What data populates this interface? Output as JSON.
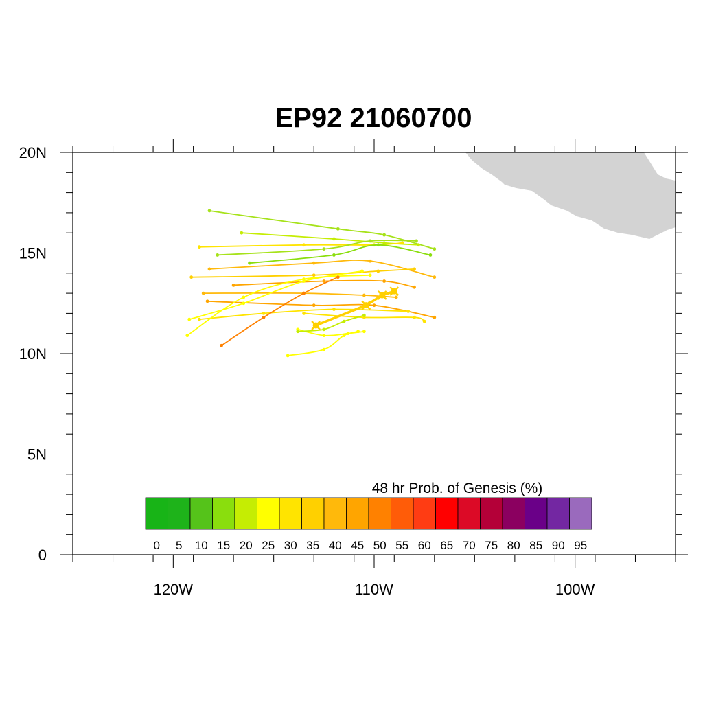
{
  "title": "EP92 21060700",
  "map": {
    "lon_range": [
      -125,
      -95
    ],
    "lat_range": [
      0,
      20
    ],
    "land_color": "#d3d3d3",
    "frame_color": "#000000"
  },
  "axes": {
    "y_ticks": [
      {
        "value": 0,
        "label": "0"
      },
      {
        "value": 5,
        "label": "5N"
      },
      {
        "value": 10,
        "label": "10N"
      },
      {
        "value": 15,
        "label": "15N"
      },
      {
        "value": 20,
        "label": "20N"
      }
    ],
    "x_ticks": [
      {
        "value": -120,
        "label": "120W"
      },
      {
        "value": -110,
        "label": "110W"
      },
      {
        "value": -100,
        "label": "100W"
      }
    ]
  },
  "colorbar": {
    "title": "48 hr Prob. of Genesis (%)",
    "labels": [
      "0",
      "5",
      "10",
      "15",
      "20",
      "25",
      "30",
      "35",
      "40",
      "45",
      "50",
      "55",
      "60",
      "65",
      "70",
      "75",
      "80",
      "85",
      "90",
      "95"
    ],
    "colors": [
      "#18b417",
      "#1eb31a",
      "#55c31a",
      "#8ade0d",
      "#c5ed03",
      "#ffff00",
      "#ffe400",
      "#ffd000",
      "#ffb90b",
      "#ffa500",
      "#ff8100",
      "#ff5c08",
      "#ff3c13",
      "#ff0000",
      "#dc0a26",
      "#b40038",
      "#8b0060",
      "#6a0088",
      "#7327a2",
      "#9a6abd"
    ]
  },
  "chart_data": {
    "type": "map-tracks",
    "mean_track": {
      "color": "#ffd000",
      "points": [
        [
          -112.9,
          11.4
        ],
        [
          -110.4,
          12.4
        ],
        [
          -109.6,
          12.9
        ],
        [
          -109.0,
          13.1
        ]
      ]
    },
    "tracks": [
      {
        "color": "#a6e21a",
        "points": [
          [
            -118.2,
            17.1
          ],
          [
            -111.8,
            16.2
          ],
          [
            -109.5,
            15.9
          ],
          [
            -107.0,
            15.2
          ]
        ]
      },
      {
        "color": "#c5ed03",
        "points": [
          [
            -116.6,
            16.0
          ],
          [
            -112.0,
            15.7
          ],
          [
            -109.5,
            15.5
          ],
          [
            -107.8,
            15.4
          ]
        ]
      },
      {
        "color": "#ffe400",
        "points": [
          [
            -118.7,
            15.3
          ],
          [
            -113.5,
            15.4
          ],
          [
            -110.0,
            15.4
          ],
          [
            -108.6,
            15.5
          ]
        ]
      },
      {
        "color": "#a6e21a",
        "points": [
          [
            -117.8,
            14.9
          ],
          [
            -112.5,
            15.2
          ],
          [
            -110.2,
            15.6
          ],
          [
            -107.9,
            15.6
          ]
        ]
      },
      {
        "color": "#8ade0d",
        "points": [
          [
            -116.2,
            14.5
          ],
          [
            -112.0,
            14.9
          ],
          [
            -109.8,
            15.4
          ],
          [
            -107.2,
            14.9
          ]
        ]
      },
      {
        "color": "#ffb90b",
        "points": [
          [
            -118.2,
            14.2
          ],
          [
            -113.0,
            14.5
          ],
          [
            -110.2,
            14.6
          ],
          [
            -107.0,
            13.8
          ]
        ]
      },
      {
        "color": "#ffd000",
        "points": [
          [
            -119.1,
            13.8
          ],
          [
            -113.0,
            13.9
          ],
          [
            -109.8,
            14.1
          ],
          [
            -108.0,
            14.2
          ]
        ]
      },
      {
        "color": "#ffa500",
        "points": [
          [
            -117.0,
            13.4
          ],
          [
            -112.5,
            13.6
          ],
          [
            -109.5,
            13.6
          ],
          [
            -108.0,
            13.3
          ]
        ]
      },
      {
        "color": "#ffb90b",
        "points": [
          [
            -118.5,
            13.0
          ],
          [
            -113.5,
            13.0
          ],
          [
            -110.5,
            12.9
          ],
          [
            -108.9,
            12.8
          ]
        ]
      },
      {
        "color": "#ffa500",
        "points": [
          [
            -118.3,
            12.6
          ],
          [
            -113.0,
            12.4
          ],
          [
            -110.0,
            12.4
          ],
          [
            -107.0,
            11.8
          ]
        ]
      },
      {
        "color": "#ffff00",
        "points": [
          [
            -119.2,
            11.7
          ],
          [
            -116.5,
            12.5
          ],
          [
            -113.5,
            13.6
          ],
          [
            -110.6,
            14.1
          ]
        ]
      },
      {
        "color": "#ffe400",
        "points": [
          [
            -118.7,
            11.7
          ],
          [
            -115.5,
            12.0
          ],
          [
            -112.0,
            12.2
          ],
          [
            -108.3,
            12.1
          ]
        ]
      },
      {
        "color": "#ffff00",
        "points": [
          [
            -119.3,
            10.9
          ],
          [
            -116.5,
            12.8
          ],
          [
            -113.5,
            13.7
          ],
          [
            -110.2,
            13.9
          ]
        ]
      },
      {
        "color": "#ff8100",
        "points": [
          [
            -117.6,
            10.4
          ],
          [
            -115.5,
            11.8
          ],
          [
            -113.5,
            13.0
          ],
          [
            -111.8,
            13.8
          ]
        ]
      },
      {
        "color": "#ffe400",
        "points": [
          [
            -113.5,
            12.0
          ],
          [
            -110.5,
            11.8
          ],
          [
            -108.0,
            11.8
          ],
          [
            -107.5,
            11.6
          ]
        ]
      },
      {
        "color": "#ffff00",
        "points": [
          [
            -113.8,
            11.2
          ],
          [
            -112.5,
            10.9
          ],
          [
            -111.3,
            11.0
          ],
          [
            -110.5,
            11.1
          ]
        ]
      },
      {
        "color": "#ffff00",
        "points": [
          [
            -114.3,
            9.9
          ],
          [
            -112.5,
            10.2
          ],
          [
            -111.5,
            10.9
          ],
          [
            -110.8,
            11.1
          ]
        ]
      },
      {
        "color": "#c5ed03",
        "points": [
          [
            -113.8,
            11.1
          ],
          [
            -112.5,
            11.2
          ],
          [
            -111.5,
            11.6
          ],
          [
            -110.5,
            11.9
          ]
        ]
      }
    ]
  }
}
